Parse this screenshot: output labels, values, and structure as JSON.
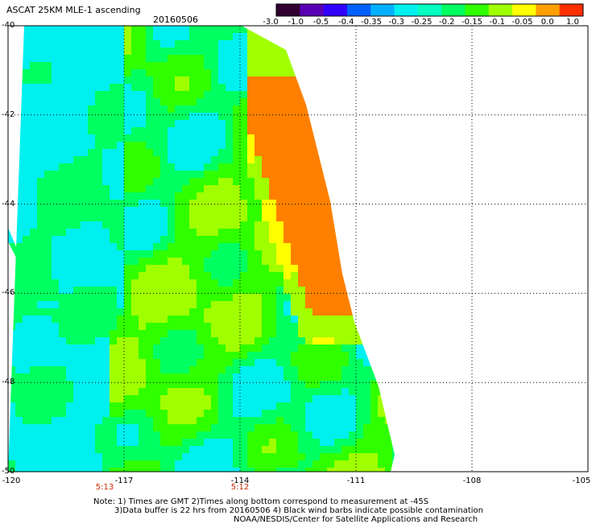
{
  "header": {
    "title": "ASCAT 25KM MLE-1 ascending",
    "date": "20160506"
  },
  "colorbar": {
    "labels": [
      "-3.0",
      "-1.0",
      "-0.5",
      "-0.4",
      "-0.35",
      "-0.3",
      "-0.25",
      "-0.2",
      "-0.15",
      "-0.1",
      "-0.05",
      "0.0",
      "1.0"
    ],
    "colors": [
      "#300030",
      "#5a00b4",
      "#3000ff",
      "#0060ff",
      "#00b0ff",
      "#00f0f0",
      "#00ffc0",
      "#00ff60",
      "#30ff00",
      "#a0ff00",
      "#ffff00",
      "#ffa000",
      "#ff3000"
    ]
  },
  "map": {
    "lon_range": [
      -120,
      -105
    ],
    "lat_range": [
      -50,
      -40
    ],
    "y_ticks": [
      "-40",
      "-42",
      "-44",
      "-46",
      "-48",
      "-50"
    ],
    "x_ticks": [
      "-120",
      "-117",
      "-114",
      "-111",
      "-108",
      "-105"
    ],
    "pass_times": [
      {
        "label": "5:13",
        "lon": -117.5
      },
      {
        "label": "5:12",
        "lon": -114.0
      }
    ],
    "colors": {
      "cyan": "#00f0f0",
      "green": "#30ff00",
      "light_green": "#00ff60",
      "yellow_green": "#a0ff00",
      "yellow": "#ffff00",
      "orange": "#ff8000"
    }
  },
  "notes": {
    "line1": "Note: 1) Times are GMT 2)Times along bottom correspond to measurement at -45S",
    "line2": "3)Data buffer is 22 hrs from 20160506 4) Black wind barbs indicate possible contamination",
    "line3": "NOAA/NESDIS/Center for Satellite Applications and Research"
  }
}
